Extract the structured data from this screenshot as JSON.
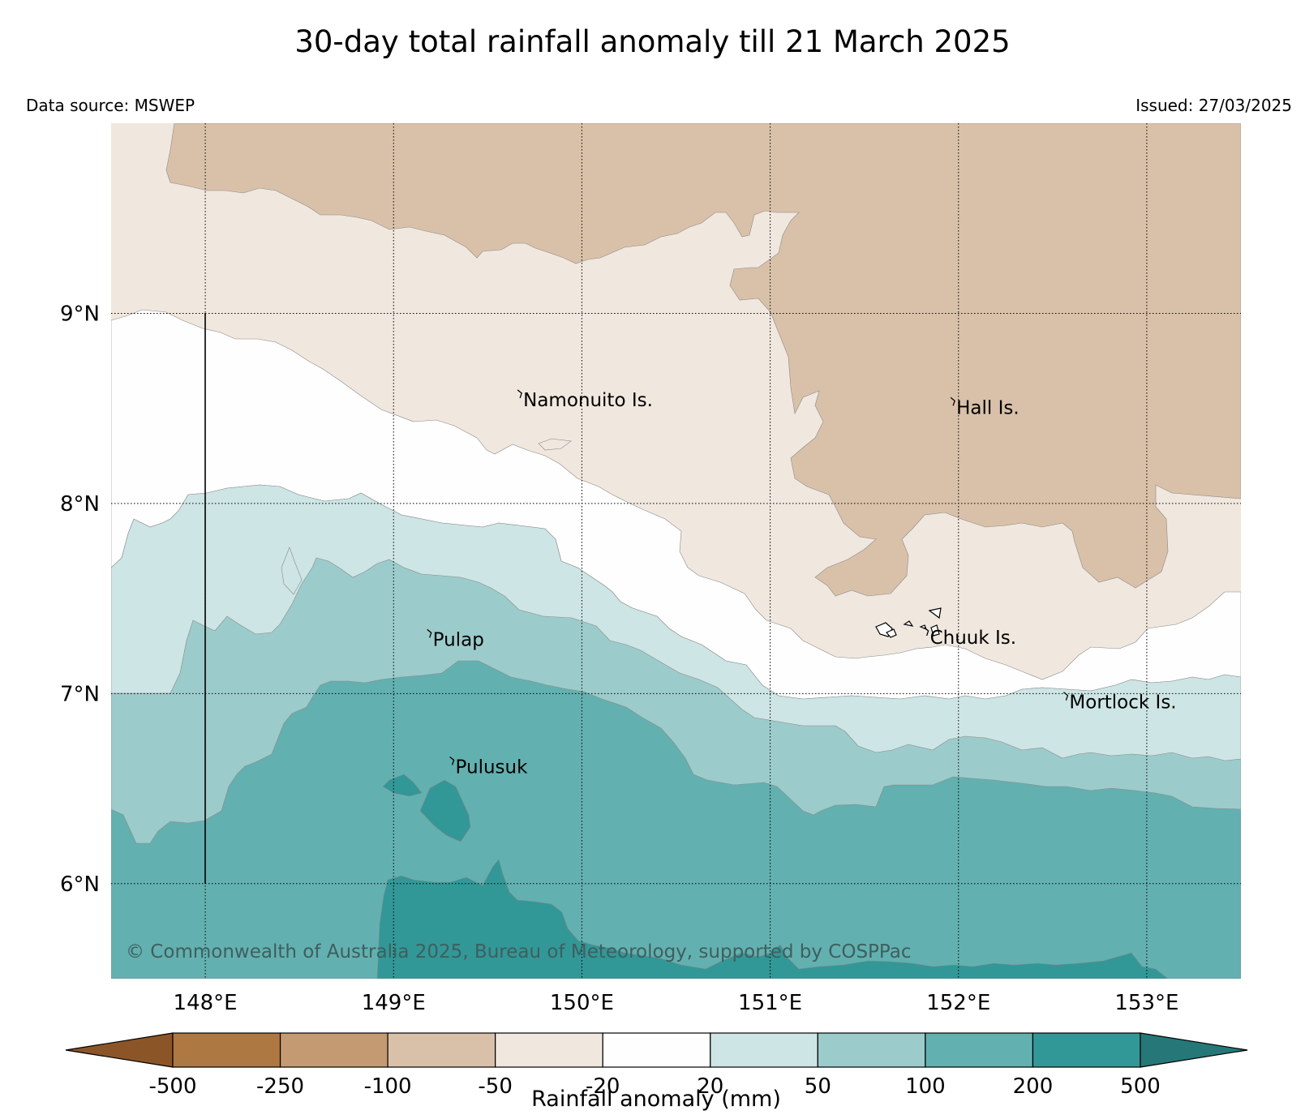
{
  "title": "30-day total rainfall anomaly till 21 March 2025",
  "data_source": "Data source: MSWEP",
  "issued": "Issued: 27/03/2025",
  "copyright": "© Commonwealth of Australia 2025, Bureau of Meteorology, supported by COSPPac",
  "map": {
    "lon_range": [
      147.5,
      153.5
    ],
    "lat_range": [
      5.5,
      10.0
    ],
    "lon_ticks": [
      {
        "value": 148,
        "label": "148°E"
      },
      {
        "value": 149,
        "label": "149°E"
      },
      {
        "value": 150,
        "label": "150°E"
      },
      {
        "value": 151,
        "label": "151°E"
      },
      {
        "value": 152,
        "label": "152°E"
      },
      {
        "value": 153,
        "label": "153°E"
      }
    ],
    "lat_ticks": [
      {
        "value": 9,
        "label": "9°N"
      },
      {
        "value": 8,
        "label": "8°N"
      },
      {
        "value": 7,
        "label": "7°N"
      },
      {
        "value": 6,
        "label": "6°N"
      }
    ],
    "gridlines": true,
    "places": [
      {
        "name": "Namonuito Is.",
        "lon": 149.68,
        "lat": 8.58
      },
      {
        "name": "Hall Is.",
        "lon": 151.98,
        "lat": 8.54
      },
      {
        "name": "Pulap",
        "lon": 149.2,
        "lat": 7.32
      },
      {
        "name": "Chuuk Is.",
        "lon": 151.84,
        "lat": 7.33
      },
      {
        "name": "Mortlock Is.",
        "lon": 152.58,
        "lat": 6.99
      },
      {
        "name": "Pulusuk",
        "lon": 149.32,
        "lat": 6.65
      }
    ]
  },
  "colorbar": {
    "label": "Rainfall anomaly (mm)",
    "ticks": [
      "-500",
      "-250",
      "-100",
      "-50",
      "-20",
      "20",
      "50",
      "100",
      "200",
      "500"
    ],
    "colors": [
      "#8c5527",
      "#ad7841",
      "#c39a72",
      "#d9c1a9",
      "#f0e7de",
      "#fefefe",
      "#cde5e4",
      "#9ccbcb",
      "#63b0b0",
      "#329797",
      "#257877"
    ]
  }
}
